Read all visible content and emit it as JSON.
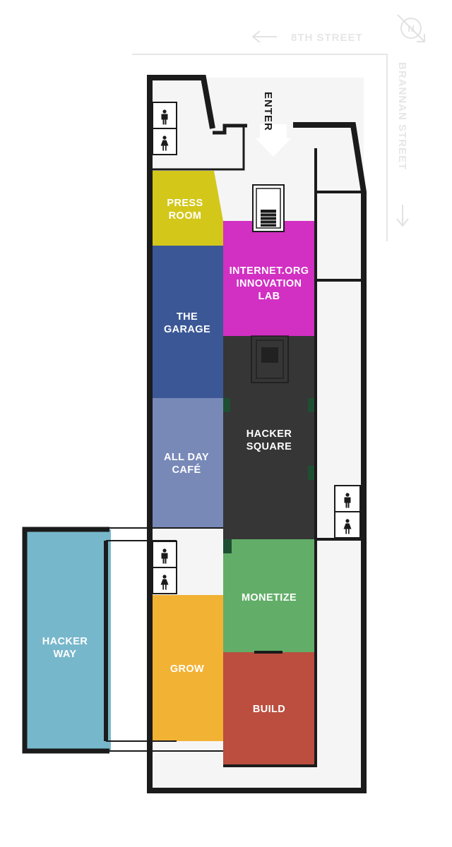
{
  "streets": {
    "north": "8TH STREET",
    "east": "BRANNAN STREET"
  },
  "entrance": {
    "label": "ENTER"
  },
  "compass": {
    "letter": "N"
  },
  "rooms": [
    {
      "id": "press-room",
      "lines": [
        "PRESS",
        "ROOM"
      ],
      "color": "#d3c71a"
    },
    {
      "id": "the-garage",
      "lines": [
        "THE",
        "GARAGE"
      ],
      "color": "#3b5796"
    },
    {
      "id": "innovation-lab",
      "lines": [
        "INTERNET.ORG",
        "INNOVATION",
        "LAB"
      ],
      "color": "#d22fc3"
    },
    {
      "id": "all-day-cafe",
      "lines": [
        "ALL DAY",
        "CAFÉ"
      ],
      "color": "#7889b8"
    },
    {
      "id": "hacker-square",
      "lines": [
        "HACKER",
        "SQUARE"
      ],
      "color": "#363636"
    },
    {
      "id": "monetize",
      "lines": [
        "MONETIZE"
      ],
      "color": "#62ae68"
    },
    {
      "id": "grow",
      "lines": [
        "GROW"
      ],
      "color": "#f2b233"
    },
    {
      "id": "build",
      "lines": [
        "BUILD"
      ],
      "color": "#bb4e3f"
    },
    {
      "id": "hacker-way",
      "lines": [
        "HACKER",
        "WAY"
      ],
      "color": "#77b7cb"
    }
  ],
  "restrooms": [
    {
      "id": "restroom-nw",
      "icons": [
        "man-icon",
        "woman-icon"
      ]
    },
    {
      "id": "restroom-east",
      "icons": [
        "man-icon",
        "woman-icon"
      ]
    },
    {
      "id": "restroom-west",
      "icons": [
        "man-icon",
        "woman-icon"
      ]
    }
  ],
  "colors": {
    "wall": "#1b1b1b",
    "floor": "#f5f5f5",
    "street_text": "#e6e6e6"
  }
}
